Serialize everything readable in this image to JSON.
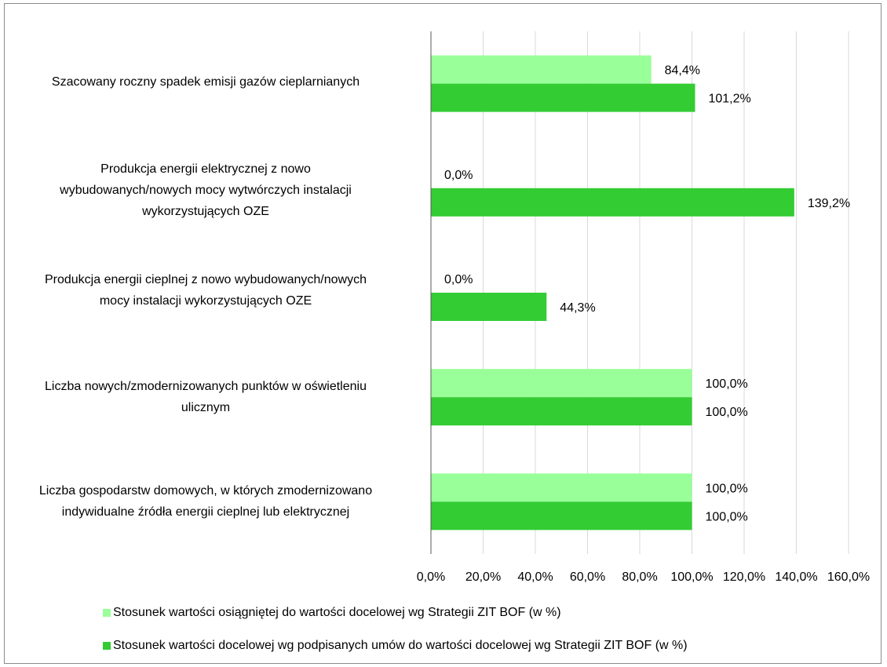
{
  "chart_data": {
    "type": "bar",
    "orientation": "horizontal",
    "categories": [
      "Szacowany roczny spadek emisji gazów cieplarnianych",
      "Produkcja energii elektrycznej z nowo\nwybudowanych/nowych mocy wytwórczych instalacji\nwykorzystujących OZE",
      "Produkcja energii cieplnej z nowo wybudowanych/nowych\nmocy instalacji wykorzystujących OZE",
      "Liczba nowych/zmodernizowanych punktów w oświetleniu\nulicznym",
      "Liczba gospodarstw domowych, w których zmodernizowano\nindywidualne źródła energii cieplnej lub elektrycznej"
    ],
    "series": [
      {
        "name": "Stosunek wartości osiągniętej do wartości docelowej wg Strategii ZIT BOF (w %)",
        "color": "#99ff99",
        "values": [
          84.4,
          0.0,
          0.0,
          100.0,
          100.0
        ],
        "labels": [
          "84,4%",
          "0,0%",
          "0,0%",
          "100,0%",
          "100,0%"
        ]
      },
      {
        "name": "Stosunek wartości docelowej wg podpisanych umów do wartości docelowej wg Strategii ZIT BOF (w %)",
        "color": "#33cc33",
        "values": [
          101.2,
          139.2,
          44.3,
          100.0,
          100.0
        ],
        "labels": [
          "101,2%",
          "139,2%",
          "44,3%",
          "100,0%",
          "100,0%"
        ]
      }
    ],
    "xlim": [
      0,
      160
    ],
    "xticks": [
      0,
      20,
      40,
      60,
      80,
      100,
      120,
      140,
      160
    ],
    "xtick_labels": [
      "0,0%",
      "20,0%",
      "40,0%",
      "60,0%",
      "80,0%",
      "100,0%",
      "120,0%",
      "140,0%",
      "160,0%"
    ],
    "grid": "vertical",
    "grid_color": "#d9d9d9",
    "legend_position": "bottom"
  }
}
